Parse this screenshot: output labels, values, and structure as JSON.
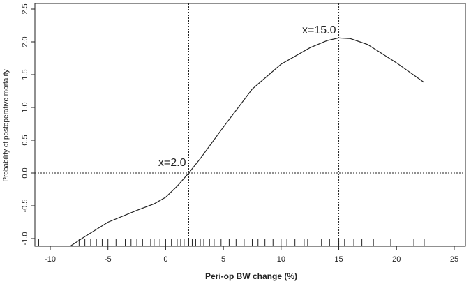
{
  "chart_data": {
    "type": "line",
    "xlabel": "Peri-op BW change (%)",
    "ylabel": "Probability of postoperative mortality",
    "xlim": [
      -11.33,
      25.97
    ],
    "ylim": [
      -1.117,
      2.585
    ],
    "xticks": [
      -10,
      -5,
      0,
      5,
      10,
      15,
      20,
      25
    ],
    "yticks": [
      {
        "value": -1.0,
        "label": "-1.0"
      },
      -0.5,
      {
        "value": 0.0,
        "label": "0.0"
      },
      0.5,
      {
        "value": 1.0,
        "label": "1.0"
      },
      1.5,
      {
        "value": 2.0,
        "label": "2.0"
      },
      2.5
    ],
    "x": [
      -8.3,
      -7,
      -5,
      -2.5,
      -1,
      0,
      1,
      2,
      3,
      5,
      7.5,
      10,
      12.5,
      14,
      15,
      16,
      17.5,
      20,
      22.4
    ],
    "series": [
      {
        "color": "#222222",
        "values": [
          -1.12,
          -0.97,
          -0.75,
          -0.57,
          -0.47,
          -0.37,
          -0.2,
          0.0,
          0.22,
          0.7,
          1.28,
          1.66,
          1.91,
          2.02,
          2.06,
          2.05,
          1.96,
          1.68,
          1.38
        ]
      }
    ],
    "rug": [
      -11,
      -7.5,
      -7,
      -6.5,
      -6,
      -5.5,
      -5,
      -4.3,
      -3.5,
      -3,
      -2.5,
      -2,
      -1.3,
      -1,
      -0.5,
      0,
      0.5,
      1,
      1.3,
      1.6,
      2,
      2.3,
      2.6,
      3,
      3.3,
      3.8,
      4.2,
      4.8,
      5.5,
      6.1,
      6.8,
      7.5,
      8,
      8.6,
      9.3,
      10,
      10.5,
      11.2,
      12,
      12.3,
      13.5,
      14.2,
      15,
      15.5,
      16.3,
      17,
      18,
      19.5,
      21.5,
      22.4
    ],
    "reference_lines": {
      "x": [
        2,
        15
      ],
      "y": [
        0
      ]
    },
    "annotations": [
      "x=2.0",
      "x=15.0"
    ]
  }
}
